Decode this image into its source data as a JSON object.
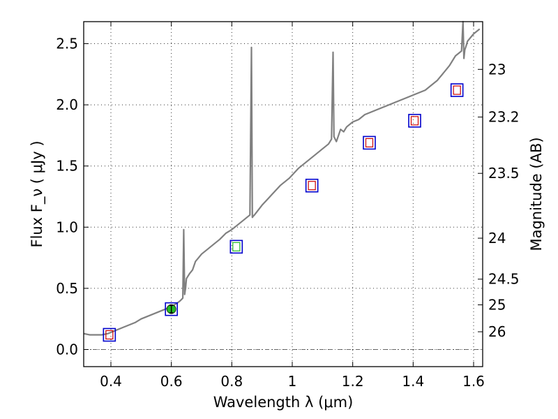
{
  "chart_data": {
    "type": "line",
    "title": "",
    "xlabel": "Wavelength  λ (μm)",
    "ylabel": "Flux  F_ν  ( μJy )",
    "y2label": "Magnitude (AB)",
    "xlim": [
      0.31,
      1.63
    ],
    "ylim": [
      -0.14,
      2.68
    ],
    "xticks": [
      0.4,
      0.6,
      0.8,
      1.0,
      1.2,
      1.4,
      1.6
    ],
    "xtick_labels": [
      "0.4",
      "0.6",
      "0.8",
      "1",
      "1.2",
      "1.4",
      "1.6"
    ],
    "yticks": [
      0.0,
      0.5,
      1.0,
      1.5,
      2.0,
      2.5
    ],
    "ytick_labels": [
      "0.0",
      "0.5",
      "1.0",
      "1.5",
      "2.0",
      "2.5"
    ],
    "y2ticks": [
      {
        "label": "23",
        "flux": 2.29
      },
      {
        "label": "23.2",
        "flux": 1.9
      },
      {
        "label": "23.5",
        "flux": 1.44
      },
      {
        "label": "24",
        "flux": 0.91
      },
      {
        "label": "24.5",
        "flux": 0.575
      },
      {
        "label": "25",
        "flux": 0.365
      },
      {
        "label": "26",
        "flux": 0.145
      }
    ],
    "zero_line": 0.0,
    "grid": true,
    "colors": {
      "spectrum": "#808080",
      "model_box": "#0000cc",
      "obs_red": "#cc0000",
      "obs_green": "#22bb22",
      "zero_line": "#666666"
    },
    "series": [
      {
        "name": "spectrum",
        "x": [
          0.31,
          0.33,
          0.35,
          0.37,
          0.39,
          0.4,
          0.42,
          0.44,
          0.46,
          0.48,
          0.5,
          0.52,
          0.54,
          0.56,
          0.58,
          0.6,
          0.62,
          0.63,
          0.638,
          0.641,
          0.644,
          0.647,
          0.65,
          0.66,
          0.67,
          0.68,
          0.69,
          0.7,
          0.72,
          0.74,
          0.76,
          0.78,
          0.8,
          0.82,
          0.84,
          0.86,
          0.865,
          0.868,
          0.871,
          0.875,
          0.9,
          0.93,
          0.96,
          0.99,
          1.02,
          1.05,
          1.08,
          1.1,
          1.12,
          1.13,
          1.135,
          1.138,
          1.142,
          1.146,
          1.16,
          1.17,
          1.18,
          1.2,
          1.22,
          1.24,
          1.26,
          1.28,
          1.3,
          1.32,
          1.34,
          1.36,
          1.38,
          1.4,
          1.42,
          1.44,
          1.46,
          1.48,
          1.5,
          1.52,
          1.54,
          1.56,
          1.565,
          1.568,
          1.571,
          1.575,
          1.58,
          1.6,
          1.62
        ],
        "y": [
          0.13,
          0.12,
          0.12,
          0.12,
          0.13,
          0.14,
          0.16,
          0.18,
          0.2,
          0.22,
          0.25,
          0.27,
          0.29,
          0.31,
          0.33,
          0.35,
          0.38,
          0.4,
          0.42,
          0.98,
          0.45,
          0.5,
          0.58,
          0.62,
          0.65,
          0.72,
          0.75,
          0.78,
          0.82,
          0.86,
          0.9,
          0.95,
          0.98,
          1.02,
          1.06,
          1.1,
          2.47,
          1.08,
          1.09,
          1.1,
          1.18,
          1.26,
          1.34,
          1.4,
          1.48,
          1.54,
          1.6,
          1.64,
          1.68,
          1.72,
          2.43,
          1.74,
          1.72,
          1.7,
          1.8,
          1.78,
          1.82,
          1.86,
          1.88,
          1.92,
          1.94,
          1.96,
          1.98,
          2.0,
          2.02,
          2.04,
          2.06,
          2.08,
          2.1,
          2.12,
          2.16,
          2.2,
          2.26,
          2.32,
          2.4,
          2.44,
          2.68,
          2.38,
          2.45,
          2.48,
          2.52,
          2.58,
          2.62
        ]
      },
      {
        "name": "model_boxes",
        "x": [
          0.395,
          0.6,
          0.815,
          1.065,
          1.255,
          1.405,
          1.545
        ],
        "y": [
          0.12,
          0.33,
          0.84,
          1.34,
          1.69,
          1.87,
          2.12
        ]
      },
      {
        "name": "observed_red",
        "x": [
          0.395,
          1.065,
          1.255,
          1.405,
          1.545
        ],
        "y": [
          0.12,
          1.34,
          1.69,
          1.87,
          2.12
        ]
      },
      {
        "name": "observed_green",
        "x": [
          0.815
        ],
        "y": [
          0.84
        ]
      },
      {
        "name": "observed_point",
        "x": [
          0.6
        ],
        "y": [
          0.33
        ],
        "err": [
          0.03
        ]
      }
    ]
  }
}
